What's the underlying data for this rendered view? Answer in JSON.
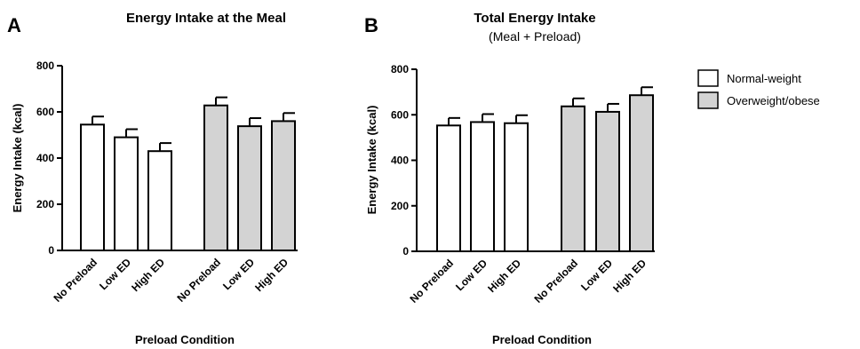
{
  "legend": {
    "items": [
      {
        "label": "Normal-weight",
        "fill": "#ffffff"
      },
      {
        "label": "Overweight/obese",
        "fill": "#d3d3d3"
      }
    ]
  },
  "chart_data": [
    {
      "panel": "A",
      "type": "bar",
      "title": "Energy Intake at the Meal",
      "subtitle": "",
      "ylabel": "Energy Intake (kcal)",
      "xlabel": "Preload Condition",
      "ylim": [
        0,
        800
      ],
      "yticks": [
        0,
        200,
        400,
        600,
        800
      ],
      "categories": [
        "No Preload",
        "Low ED",
        "High ED"
      ],
      "series": [
        {
          "name": "Normal-weight",
          "values": [
            545,
            490,
            430
          ],
          "errors": [
            35,
            35,
            35
          ]
        },
        {
          "name": "Overweight/obese",
          "values": [
            628,
            538,
            560
          ],
          "errors": [
            35,
            35,
            35
          ]
        }
      ]
    },
    {
      "panel": "B",
      "type": "bar",
      "title": "Total Energy Intake",
      "subtitle": "(Meal + Preload)",
      "ylabel": "Energy Intake (kcal)",
      "xlabel": "Preload Condition",
      "ylim": [
        0,
        800
      ],
      "yticks": [
        0,
        200,
        400,
        600,
        800
      ],
      "categories": [
        "No Preload",
        "Low ED",
        "High ED"
      ],
      "series": [
        {
          "name": "Normal-weight",
          "values": [
            553,
            568,
            563
          ],
          "errors": [
            33,
            35,
            35
          ]
        },
        {
          "name": "Overweight/obese",
          "values": [
            637,
            613,
            686
          ],
          "errors": [
            35,
            35,
            35
          ]
        }
      ]
    }
  ]
}
